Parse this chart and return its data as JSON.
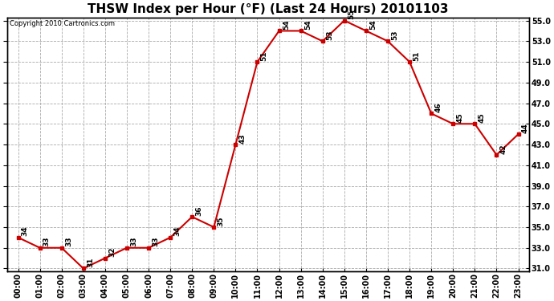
{
  "title": "THSW Index per Hour (°F) (Last 24 Hours) 20101103",
  "copyright": "Copyright 2010 Cartronics.com",
  "hours": [
    "00:00",
    "01:00",
    "02:00",
    "03:00",
    "04:00",
    "05:00",
    "06:00",
    "07:00",
    "08:00",
    "09:00",
    "10:00",
    "11:00",
    "12:00",
    "13:00",
    "14:00",
    "15:00",
    "16:00",
    "17:00",
    "18:00",
    "19:00",
    "20:00",
    "21:00",
    "22:00",
    "23:00"
  ],
  "values": [
    34,
    33,
    33,
    31,
    32,
    33,
    33,
    34,
    36,
    35,
    43,
    51,
    54,
    54,
    53,
    55,
    54,
    53,
    51,
    46,
    45,
    45,
    42,
    44
  ],
  "ylim_min": 31.0,
  "ylim_max": 55.0,
  "yticks": [
    31.0,
    33.0,
    35.0,
    37.0,
    39.0,
    41.0,
    43.0,
    45.0,
    47.0,
    49.0,
    51.0,
    53.0,
    55.0
  ],
  "line_color": "#cc0000",
  "marker_color": "#cc0000",
  "bg_color": "#ffffff",
  "grid_color": "#aaaaaa",
  "title_fontsize": 11,
  "tick_fontsize": 7,
  "annotation_fontsize": 6.5,
  "copyright_fontsize": 6
}
